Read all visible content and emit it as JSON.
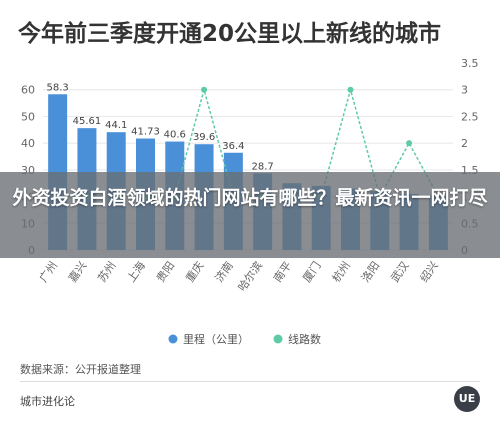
{
  "title": "今年前三季度开通20公里以上新线的城市",
  "overlay_text": "外资投资白酒领域的热门网站有哪些？最新资讯一网打尽",
  "source": "数据来源：公开报道整理",
  "brand": "城市进化论",
  "logo_text": "UE",
  "colors": {
    "bar": "#4a90d9",
    "line": "#5ecaa6",
    "axis_text": "#666666"
  },
  "chart_data": {
    "type": "bar",
    "categories": [
      "广州",
      "嘉兴",
      "苏州",
      "上海",
      "贵阳",
      "重庆",
      "济南",
      "哈尔滨",
      "南平",
      "厦门",
      "杭州",
      "洛阳",
      "武汉",
      "绍兴"
    ],
    "series": [
      {
        "name": "里程（公里）",
        "type": "bar",
        "axis": "left",
        "values": [
          58.3,
          45.61,
          44.1,
          41.73,
          40.6,
          39.6,
          36.4,
          28.7,
          25,
          24,
          23,
          22,
          21,
          20.5
        ],
        "labels": [
          "58.3",
          "45.61",
          "44.1",
          "41.73",
          "40.6",
          "39.6",
          "36.4",
          "28.7",
          "",
          "",
          "",
          "",
          "",
          ""
        ]
      },
      {
        "name": "线路数",
        "type": "line",
        "axis": "right",
        "values": [
          1,
          1,
          1,
          1,
          1,
          3,
          1,
          1,
          1,
          1,
          3,
          1,
          2,
          1
        ]
      }
    ],
    "y_left": {
      "range": [
        0,
        70
      ],
      "ticks": [
        "0",
        "10",
        "20",
        "30",
        "40",
        "50",
        "60"
      ]
    },
    "y_right": {
      "range": [
        0,
        3.5
      ],
      "ticks": [
        "0",
        "0.5",
        "1",
        "1.5",
        "2",
        "2.5",
        "3",
        "3.5"
      ]
    },
    "grid": true,
    "legend_position": "bottom-center"
  }
}
